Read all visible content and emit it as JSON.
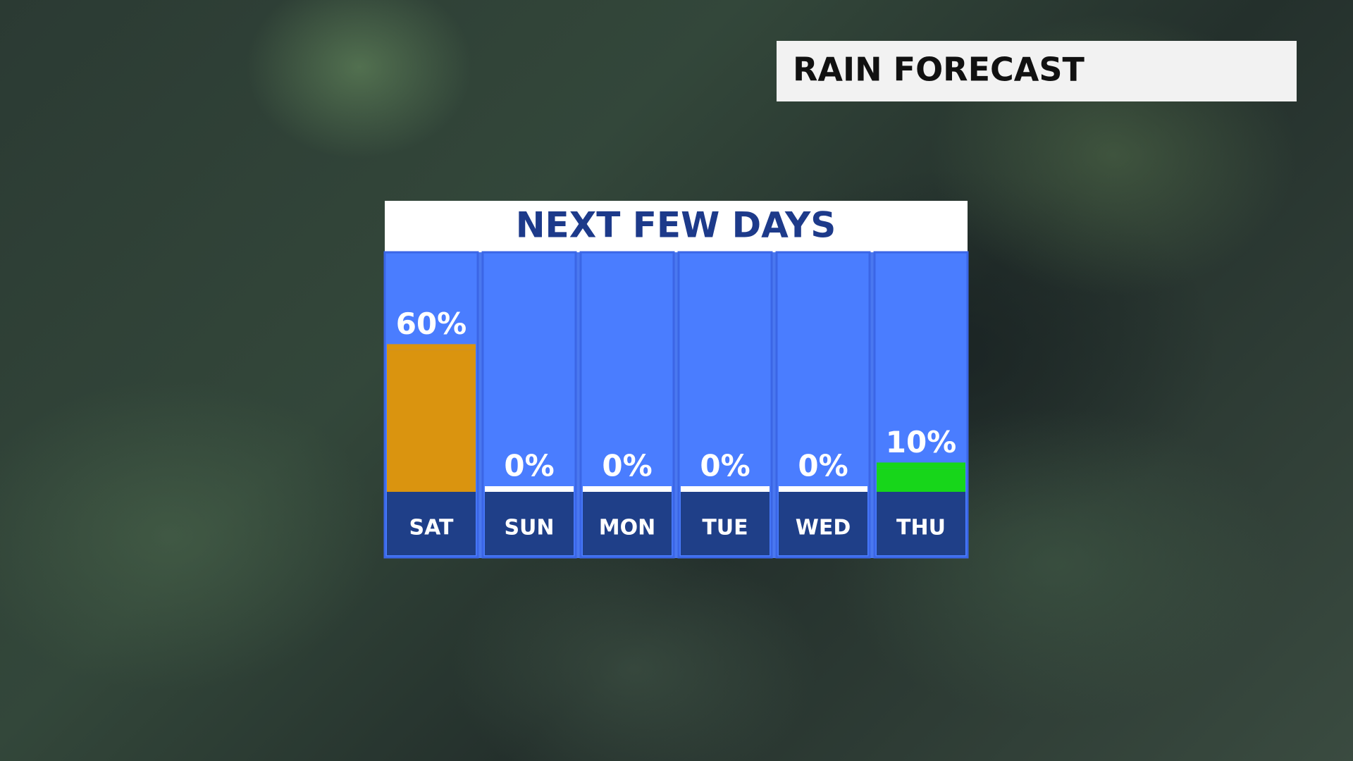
{
  "header": {
    "title": "RAIN FORECAST"
  },
  "chart_data": {
    "type": "bar",
    "title": "NEXT FEW DAYS",
    "categories": [
      "SAT",
      "SUN",
      "MON",
      "TUE",
      "WED",
      "THU"
    ],
    "values": [
      60,
      0,
      0,
      0,
      0,
      10
    ],
    "value_labels": [
      "60%",
      "0%",
      "0%",
      "0%",
      "0%",
      "10%"
    ],
    "colors": [
      "#da940f",
      "#ffffff",
      "#ffffff",
      "#ffffff",
      "#ffffff",
      "#17d61a"
    ],
    "ylim": [
      0,
      100
    ]
  }
}
